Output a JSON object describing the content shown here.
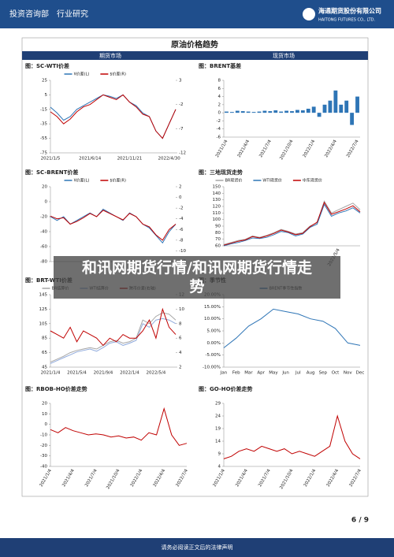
{
  "header": {
    "department": "投资咨询部",
    "section": "行业研究",
    "company": "海通期货股份有限公司",
    "company_en": "HAITONG FUTURES CO., LTD."
  },
  "panel": {
    "title": "原油价格趋势",
    "left_heading": "期货市场",
    "right_heading": "现货市场"
  },
  "overlay": "和讯网期货行情/和讯网期货行情走势",
  "page_number": "6 / 9",
  "footer": "请务必阅读正文后的法律声明",
  "chart_data": [
    {
      "type": "line",
      "title": "图：SC-WTI价差",
      "categories": [
        "2021/1/5",
        null,
        null,
        null,
        null,
        null,
        "2021/6/14",
        null,
        null,
        null,
        null,
        null,
        "2021/11/21",
        null,
        null,
        null,
        null,
        null,
        "2022/4/30",
        null
      ],
      "series": [
        {
          "name": "¥价差(L)",
          "color": "#2e75b6",
          "values": [
            -12,
            -20,
            -30,
            -25,
            -15,
            -10,
            -5,
            0,
            5,
            3,
            0,
            5,
            -5,
            -10,
            -20,
            -25,
            -45,
            -55,
            -35,
            -15
          ]
        },
        {
          "name": "$价差(R)",
          "color": "#c00000",
          "axis": "y2",
          "values": [
            -3.5,
            -4.5,
            -6,
            -5,
            -3.5,
            -2.5,
            -2,
            -1,
            0,
            -0.5,
            -1,
            0,
            -1.5,
            -2.5,
            -4,
            -4.5,
            -7.5,
            -9,
            -6,
            -3
          ]
        }
      ],
      "ylim": [
        -75,
        25
      ],
      "yticks": [
        25,
        5,
        -15,
        -35,
        -55,
        -75
      ],
      "y2lim": [
        -12,
        3
      ],
      "y2ticks": [
        3,
        -2,
        -7,
        -12
      ]
    },
    {
      "type": "bar",
      "title": "图：BRENT基差",
      "categories": [
        "2021/1/4",
        null,
        null,
        null,
        "2021/4/4",
        null,
        null,
        null,
        "2021/7/4",
        null,
        null,
        null,
        "2021/10/4",
        null,
        null,
        null,
        "2022/1/4",
        null,
        null,
        null,
        "2022/4/4",
        null,
        null,
        null,
        "2022/7/4"
      ],
      "series": [
        {
          "color": "#2e75b6",
          "values": [
            0.3,
            0.2,
            0.5,
            0.4,
            0.3,
            0.2,
            0.3,
            0.5,
            0.4,
            0.6,
            0.3,
            0.5,
            0.4,
            0.7,
            0.6,
            1,
            1.5,
            -1,
            2,
            3,
            5.5,
            2,
            3,
            -3,
            4
          ]
        }
      ],
      "ylim": [
        -6,
        8
      ],
      "yticks": [
        8,
        6,
        4,
        2,
        0,
        -2,
        -4,
        -6
      ]
    },
    {
      "type": "line",
      "title": "图：SC-BRENT价差",
      "categories": [
        null,
        null,
        null,
        null,
        null,
        null,
        null,
        null,
        null,
        null,
        null,
        null,
        null,
        null,
        null,
        null,
        null,
        null,
        null,
        null
      ],
      "series": [
        {
          "name": "¥价差(L)",
          "color": "#2e75b6",
          "values": [
            -20,
            -25,
            -20,
            -30,
            -25,
            -20,
            -15,
            -20,
            -10,
            -15,
            -20,
            -25,
            -15,
            -20,
            -30,
            -35,
            -45,
            -55,
            -40,
            -30
          ]
        },
        {
          "name": "$价差(R)",
          "color": "#c00000",
          "axis": "y2",
          "values": [
            -3.5,
            -4,
            -3.8,
            -5,
            -4.5,
            -3.8,
            -3,
            -3.6,
            -2.4,
            -3,
            -3.6,
            -4.2,
            -3,
            -3.6,
            -5,
            -5.5,
            -7,
            -8,
            -6,
            -5
          ]
        }
      ],
      "ylim": [
        -80,
        20
      ],
      "yticks": [
        20,
        0,
        -20,
        -40,
        -60,
        -80
      ],
      "y2lim": [
        -12,
        2
      ],
      "y2ticks": [
        2,
        0,
        -2,
        -4,
        -6,
        -8,
        -10,
        -12
      ]
    },
    {
      "type": "line",
      "title": "图：三地现货走势",
      "categories": [
        null,
        null,
        null,
        null,
        null,
        null,
        null,
        null,
        null,
        null,
        null,
        null,
        null,
        null,
        null,
        null,
        "2022/5/4",
        null,
        null,
        null
      ],
      "series": [
        {
          "name": "BR现货价",
          "color": "#a6a6a6",
          "values": [
            62,
            65,
            68,
            70,
            75,
            73,
            76,
            80,
            85,
            82,
            78,
            80,
            90,
            95,
            128,
            110,
            115,
            120,
            125,
            115
          ]
        },
        {
          "name": "WTI现货价",
          "color": "#2e75b6",
          "values": [
            60,
            63,
            65,
            68,
            72,
            71,
            73,
            77,
            82,
            80,
            75,
            78,
            88,
            93,
            123,
            105,
            110,
            113,
            118,
            110
          ]
        },
        {
          "name": "中东现货价",
          "color": "#c00000",
          "values": [
            61,
            64,
            67,
            69,
            74,
            72,
            75,
            79,
            84,
            81,
            77,
            79,
            89,
            96,
            126,
            108,
            112,
            116,
            121,
            112
          ]
        }
      ],
      "ylim": [
        60,
        150
      ],
      "yticks": [
        150,
        140,
        130,
        120,
        110,
        100,
        90,
        80,
        70,
        60
      ]
    },
    {
      "type": "line",
      "title": "图：BRT-WTI价差",
      "categories": [
        "2021/1/4",
        null,
        null,
        null,
        "2021/5/4",
        null,
        null,
        null,
        "2021/9/4",
        null,
        null,
        null,
        "2022/1/4",
        null,
        null,
        null,
        "2022/5/4",
        null,
        null,
        null
      ],
      "series": [
        {
          "name": "BR结算价",
          "color": "#a6a6a6",
          "values": [
            52,
            56,
            60,
            65,
            68,
            70,
            72,
            70,
            75,
            80,
            82,
            78,
            80,
            85,
            110,
            105,
            115,
            120,
            118,
            110
          ]
        },
        {
          "name": "WTI结算价",
          "color": "#8faadc",
          "values": [
            50,
            54,
            58,
            62,
            66,
            68,
            70,
            67,
            72,
            78,
            80,
            75,
            78,
            82,
            105,
            100,
            110,
            112,
            110,
            105
          ]
        },
        {
          "name": "跨市价差(右轴)",
          "color": "#c00000",
          "axis": "y2",
          "values": [
            7,
            6.5,
            6,
            7.5,
            5.5,
            7,
            6.5,
            6,
            5,
            6,
            5.5,
            6.5,
            6,
            6,
            7,
            8.5,
            6,
            10,
            7.5,
            6.5
          ]
        }
      ],
      "ylim": [
        45,
        145
      ],
      "yticks": [
        145,
        125,
        105,
        85,
        65,
        45
      ],
      "y2lim": [
        2,
        12
      ],
      "y2ticks": [
        12,
        10,
        8,
        6,
        4,
        2
      ]
    },
    {
      "type": "line",
      "title": "图：季节性",
      "categories": [
        "Jan",
        "Feb",
        "Mar",
        "Apr",
        "May",
        "Jun",
        "Jul",
        "Aug",
        "Sep",
        "Oct",
        "Nov",
        "Dec"
      ],
      "series": [
        {
          "name": "BRENT季节性指数",
          "color": "#2e75b6",
          "values": [
            -2,
            2,
            7,
            10,
            14,
            13,
            12,
            10,
            9,
            6,
            0,
            -1
          ]
        }
      ],
      "ylim": [
        -10,
        20
      ],
      "yticks": [
        {
          "value": 20,
          "label": "20.00%"
        },
        {
          "value": 15,
          "label": "15.00%"
        },
        {
          "value": 10,
          "label": "10.00%"
        },
        {
          "value": 5,
          "label": "5.00%"
        },
        {
          "value": 0,
          "label": "0.00%"
        },
        {
          "value": -5,
          "label": "-5.00%"
        },
        {
          "value": -10,
          "label": "-10.00%"
        }
      ]
    },
    {
      "type": "line",
      "title": "图：RBOB-HO价差走势",
      "categories": [
        "2021/1/4",
        null,
        null,
        "2021/4/4",
        null,
        null,
        "2021/7/4",
        null,
        null,
        "2021/10/4",
        null,
        null,
        "2022/1/4",
        null,
        null,
        "2022/4/4",
        null,
        null,
        "2022/7/4"
      ],
      "series": [
        {
          "color": "#c00000",
          "values": [
            -5,
            -8,
            -3,
            -6,
            -8,
            -10,
            -9,
            -10,
            -12,
            -11,
            -13,
            -12,
            -15,
            -8,
            -10,
            15,
            -10,
            -20,
            -18
          ]
        }
      ],
      "ylim": [
        -40,
        20
      ],
      "yticks": [
        20,
        10,
        0,
        -10,
        -20,
        -30,
        -40
      ]
    },
    {
      "type": "line",
      "title": "图：GO-HO价差走势",
      "categories": [
        "2021/1/4",
        null,
        null,
        "2021/4/4",
        null,
        null,
        "2021/7/4",
        null,
        null,
        "2021/10/4",
        null,
        null,
        "2022/1/4",
        null,
        null,
        "2022/4/4",
        null,
        null,
        "2022/7/4"
      ],
      "series": [
        {
          "color": "#c00000",
          "values": [
            7,
            8,
            10,
            11,
            10,
            12,
            11,
            10,
            11,
            9,
            10,
            9,
            8,
            10,
            12,
            24,
            14,
            9,
            7
          ]
        }
      ],
      "ylim": [
        4,
        29
      ],
      "yticks": [
        29,
        24,
        19,
        14,
        9,
        4
      ]
    }
  ]
}
